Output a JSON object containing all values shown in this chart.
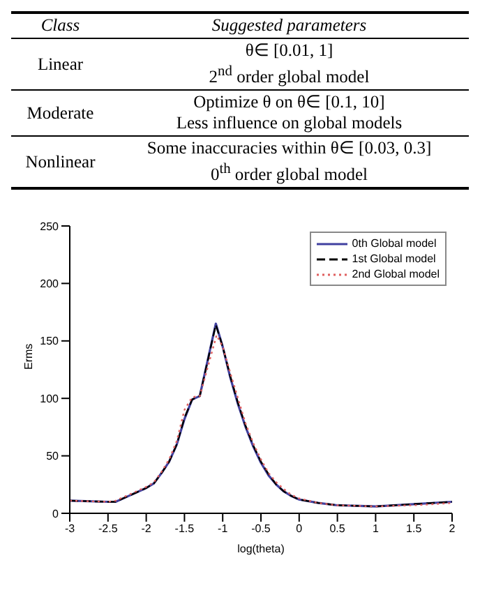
{
  "chart_data": [
    {
      "type": "other",
      "annotations": [
        "Class",
        "Suggested parameters",
        "Linear",
        "θ∈ [0.01, 1]",
        "2$^{nd}$ order global model",
        "Moderate",
        "Optimize θ on θ∈ [0.1, 10]",
        "Less influence on global models",
        "Nonlinear",
        "Some inaccuracies within θ∈ [0.03, 0.3]",
        "0$^{th}$ order global model"
      ]
    },
    {
      "type": "line",
      "xlabel": "log(theta)",
      "ylabel": "Erms",
      "xlim": [
        -3,
        2
      ],
      "xticks": [
        -3,
        -2.5,
        -2,
        -1.5,
        -1,
        -0.5,
        0,
        0.5,
        1,
        1.5,
        2
      ],
      "ylim": [
        0,
        250
      ],
      "yticks": [
        0,
        50,
        100,
        150,
        200,
        250
      ],
      "legend": "top right",
      "marker": "none",
      "series": [
        {
          "name": "0th Global model",
          "color": "#4040a0",
          "line_style": "solid",
          "x": [
            -3,
            -2.5,
            -2.4,
            -2.2,
            -2,
            -1.9,
            -1.8,
            -1.7,
            -1.6,
            -1.5,
            -1.4,
            -1.3,
            -1.09,
            -1,
            -0.9,
            -0.8,
            -0.7,
            -0.6,
            -0.5,
            -0.4,
            -0.3,
            -0.2,
            -0.1,
            0,
            0.25,
            0.5,
            1,
            1.5,
            2
          ],
          "values": [
            11,
            10,
            10,
            16,
            22,
            26,
            35,
            45,
            60,
            82,
            99,
            102,
            165,
            145,
            118,
            95,
            75,
            58,
            44,
            33,
            25,
            19,
            15,
            12,
            9,
            7,
            6,
            8,
            10
          ]
        },
        {
          "name": "1st Global model",
          "color": "#000000",
          "line_style": "dashed",
          "x": [
            -3,
            -2.5,
            -2.4,
            -2.2,
            -2,
            -1.9,
            -1.8,
            -1.7,
            -1.6,
            -1.5,
            -1.4,
            -1.3,
            -1.09,
            -1,
            -0.9,
            -0.8,
            -0.7,
            -0.6,
            -0.5,
            -0.4,
            -0.3,
            -0.2,
            -0.1,
            0,
            0.25,
            0.5,
            1,
            1.5,
            2
          ],
          "values": [
            11,
            10,
            10,
            16,
            22,
            26,
            35,
            45,
            60,
            83,
            99,
            102,
            164,
            145,
            119,
            96,
            76,
            59,
            45,
            34,
            25,
            19,
            15,
            12,
            9,
            7,
            6,
            8,
            10
          ]
        },
        {
          "name": "2nd Global model",
          "color": "#e06060",
          "line_style": "dotted",
          "x": [
            -3,
            -2.5,
            -2.4,
            -2.2,
            -2,
            -1.9,
            -1.8,
            -1.7,
            -1.6,
            -1.5,
            -1.4,
            -1.3,
            -1.08,
            -1,
            -0.9,
            -0.8,
            -0.7,
            -0.6,
            -0.5,
            -0.4,
            -0.3,
            -0.2,
            -0.1,
            0,
            0.25,
            0.5,
            1,
            1.5,
            2
          ],
          "values": [
            11,
            10,
            11,
            17,
            23,
            27,
            36,
            47,
            63,
            90,
            101,
            102,
            155,
            145,
            122,
            100,
            78,
            61,
            47,
            35,
            27,
            21,
            16,
            13,
            9,
            7,
            6,
            7,
            9
          ]
        }
      ]
    }
  ]
}
